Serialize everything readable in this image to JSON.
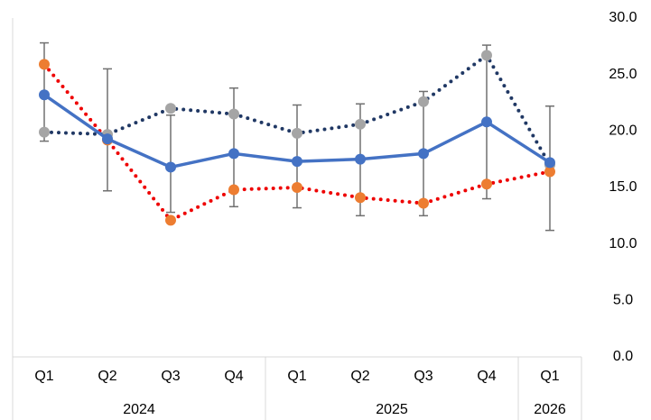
{
  "chart_data": {
    "type": "line",
    "categories": [
      "Q1",
      "Q2",
      "Q3",
      "Q4",
      "Q1",
      "Q2",
      "Q3",
      "Q4",
      "Q1"
    ],
    "group_labels": [
      "2024",
      "2025",
      "2026"
    ],
    "group_sizes": [
      4,
      4,
      1
    ],
    "series": [
      {
        "color": "#4472c4",
        "marker_color": "#4472c4",
        "line_style": "solid",
        "values": [
          23.2,
          19.3,
          16.8,
          18.0,
          17.3,
          17.5,
          18.0,
          20.8,
          17.2
        ],
        "error_low": [
          19.1,
          14.7,
          12.8,
          13.3,
          13.2,
          12.5,
          12.5,
          14.0,
          11.2
        ],
        "error_high": [
          27.8,
          25.5,
          21.4,
          23.8,
          22.3,
          22.4,
          23.5,
          27.6,
          22.2
        ]
      },
      {
        "color": "#ee0000",
        "marker_color": "#ed7d31",
        "line_style": "dotted",
        "values": [
          25.9,
          19.2,
          12.1,
          14.8,
          15.0,
          14.1,
          13.6,
          15.3,
          16.4
        ]
      },
      {
        "color": "#203864",
        "marker_color": "#a5a5a5",
        "line_style": "dotted",
        "values": [
          19.9,
          19.7,
          22.0,
          21.5,
          19.8,
          20.6,
          22.6,
          26.7,
          17.0
        ]
      }
    ],
    "ylim": [
      0,
      30
    ],
    "yticks": [
      {
        "value": 0,
        "label": "0.0"
      },
      {
        "value": 5,
        "label": "5.0"
      },
      {
        "value": 10,
        "label": "10.0"
      },
      {
        "value": 15,
        "label": "15.0"
      },
      {
        "value": 20,
        "label": "20.0"
      },
      {
        "value": 25,
        "label": "25.0"
      },
      {
        "value": 30,
        "label": "30.0"
      }
    ]
  }
}
